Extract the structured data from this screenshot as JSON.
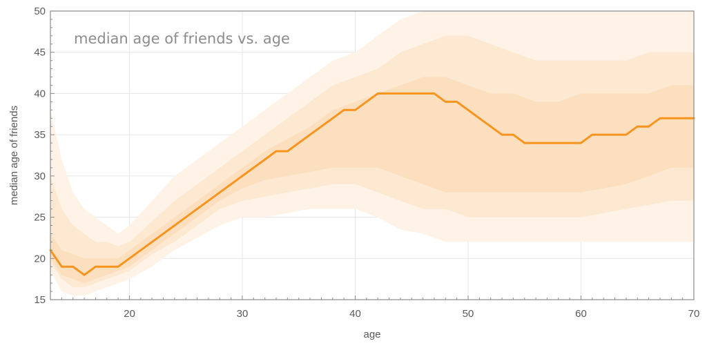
{
  "chart_data": {
    "type": "line",
    "title": "median age of friends vs. age",
    "xlabel": "age",
    "ylabel": "median age of friends",
    "xlim": [
      13,
      70
    ],
    "ylim": [
      15,
      50
    ],
    "x_ticks": [
      20,
      30,
      40,
      50,
      60,
      70
    ],
    "y_ticks": [
      15,
      20,
      25,
      30,
      35,
      40,
      45,
      50
    ],
    "grid": true,
    "legend": "none",
    "colors": {
      "line": "#f7941d",
      "band_outer": "#fef3e6",
      "band_middle": "#fde9d2",
      "band_inner": "#fcdfbf",
      "grid": "#e6e6e6",
      "frame": "#8a8a8a"
    },
    "series": [
      {
        "x": [
          13,
          14,
          15,
          16,
          17,
          18,
          19,
          20,
          22,
          24,
          26,
          28,
          30,
          32,
          33,
          34,
          36,
          38,
          39,
          40,
          42,
          43,
          44,
          45,
          46,
          47,
          48,
          49,
          50,
          51,
          52,
          53,
          54,
          55,
          56,
          57,
          58,
          59,
          60,
          61,
          62,
          63,
          64,
          65,
          66,
          67,
          68,
          69,
          70
        ],
        "values": [
          21,
          19,
          19,
          18,
          19,
          19,
          19,
          20,
          22,
          24,
          26,
          28,
          30,
          32,
          33,
          33,
          35,
          37,
          38,
          38,
          40,
          40,
          40,
          40,
          40,
          40,
          39,
          39,
          38,
          37,
          36,
          35,
          35,
          34,
          34,
          34,
          34,
          34,
          34,
          35,
          35,
          35,
          35,
          36,
          36,
          37,
          37,
          37,
          37
        ]
      }
    ],
    "bands": [
      {
        "x": [
          13,
          14,
          15,
          16,
          17,
          18,
          19,
          20,
          22,
          24,
          26,
          28,
          30,
          32,
          34,
          36,
          38,
          40,
          42,
          44,
          46,
          48,
          50,
          52,
          54,
          56,
          58,
          60,
          62,
          64,
          66,
          68,
          70
        ],
        "low": [
          18.5,
          16,
          15.5,
          15.5,
          16,
          16.5,
          17,
          17.5,
          19,
          21,
          22.5,
          24,
          25,
          25,
          25.5,
          26,
          26,
          26,
          25,
          23.5,
          23,
          22,
          22,
          22,
          22,
          22,
          22,
          22,
          22,
          22,
          22,
          22,
          22
        ],
        "high": [
          38,
          32,
          28,
          26,
          25,
          24,
          23,
          24,
          27,
          30,
          32,
          34,
          36,
          38,
          40,
          42,
          44,
          45,
          47,
          49,
          50,
          50,
          50,
          50,
          50,
          50,
          50,
          50,
          50,
          50,
          50,
          50,
          50
        ]
      },
      {
        "x": [
          13,
          14,
          15,
          16,
          17,
          18,
          19,
          20,
          22,
          24,
          26,
          28,
          30,
          32,
          34,
          36,
          38,
          40,
          42,
          44,
          46,
          48,
          50,
          52,
          54,
          56,
          58,
          60,
          62,
          64,
          66,
          68,
          70
        ],
        "low": [
          19.5,
          17.5,
          16.5,
          16.5,
          17,
          17.5,
          18,
          18.5,
          20.5,
          22,
          24,
          26,
          27,
          27.5,
          28,
          28.5,
          29,
          29,
          28,
          27,
          26,
          26,
          25,
          25,
          25,
          25,
          25,
          25,
          25.5,
          26,
          26.5,
          27,
          27
        ],
        "high": [
          30,
          26,
          24,
          23,
          22,
          22,
          21.5,
          22,
          24.5,
          27,
          29,
          31,
          33,
          35,
          37,
          39,
          41,
          42,
          43,
          45,
          46,
          47,
          47,
          46,
          45,
          44,
          44,
          44,
          44,
          44,
          45,
          45,
          45
        ]
      },
      {
        "x": [
          13,
          14,
          15,
          16,
          17,
          18,
          19,
          20,
          22,
          24,
          26,
          28,
          30,
          32,
          34,
          36,
          38,
          40,
          42,
          44,
          46,
          48,
          50,
          52,
          54,
          56,
          58,
          60,
          62,
          64,
          66,
          68,
          70
        ],
        "low": [
          20,
          18,
          17.5,
          17,
          17.5,
          18,
          18.5,
          19,
          21,
          23,
          25,
          27,
          28.5,
          29.5,
          30,
          30.5,
          31,
          31,
          31,
          30,
          29,
          28,
          28,
          28,
          28,
          28,
          28,
          28,
          28.5,
          29,
          30,
          31,
          31
        ],
        "high": [
          23,
          21,
          20.5,
          20,
          20,
          20,
          20,
          21,
          23,
          25,
          27,
          29,
          31,
          33,
          34.5,
          36,
          38,
          39,
          40,
          41,
          42,
          42,
          41,
          40,
          40,
          39,
          39,
          40,
          40,
          40,
          40,
          41,
          41
        ]
      }
    ]
  }
}
